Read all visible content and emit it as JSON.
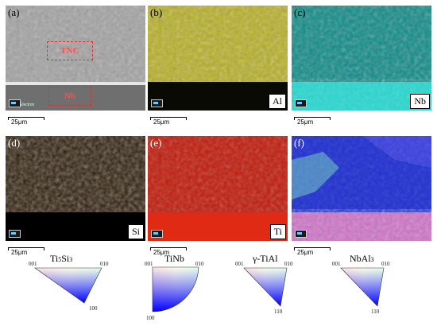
{
  "figure": {
    "panels": [
      {
        "id": "a",
        "label": "(a)",
        "element": "",
        "region_labels": [
          "TNC",
          "Nb"
        ],
        "detector_text": "Electron"
      },
      {
        "id": "b",
        "label": "(b)",
        "element": "Al"
      },
      {
        "id": "c",
        "label": "(c)",
        "element": "Nb"
      },
      {
        "id": "d",
        "label": "(d)",
        "element": "Si"
      },
      {
        "id": "e",
        "label": "(e)",
        "element": "Ti"
      },
      {
        "id": "f",
        "label": "(f)",
        "element": ""
      }
    ],
    "scale_bar": "25μm",
    "legends": [
      {
        "title": "Ti5Si3",
        "corners": [
          "001",
          "010",
          "100"
        ]
      },
      {
        "title": "TiNb",
        "corners": [
          "001",
          "010",
          "100"
        ]
      },
      {
        "title": "γ-TiAl",
        "corners": [
          "001",
          "010",
          "110"
        ]
      },
      {
        "title": "NbAl3",
        "corners": [
          "001",
          "010",
          "110"
        ]
      }
    ],
    "colors": {
      "sem": "#9a9a9a",
      "al": "#c8c020",
      "nb": "#20c8c0",
      "si": "#b07818",
      "ti": "#e02010",
      "ebsd": "#2a3ad8"
    }
  }
}
